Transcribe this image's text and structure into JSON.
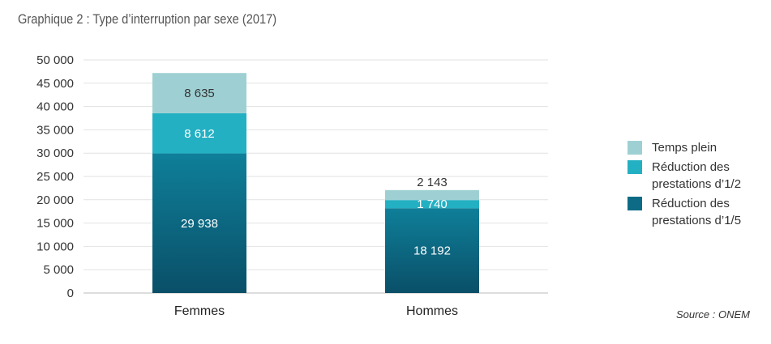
{
  "title": "Graphique 2 : Type d’interruption par sexe (2017)",
  "source": "Source : ONEM",
  "chart_data": {
    "type": "bar",
    "stacked": true,
    "categories": [
      "Femmes",
      "Hommes"
    ],
    "series": [
      {
        "name": "Réduction des prestations d’1/5",
        "values": [
          29938,
          18192
        ],
        "labels": [
          "29 938",
          "18 192"
        ],
        "color": "#0e6b86",
        "label_color": "#ffffff"
      },
      {
        "name": "Réduction des prestations d’1/2",
        "values": [
          8612,
          1740
        ],
        "labels": [
          "8 612",
          "1 740"
        ],
        "color": "#23b0c3",
        "label_color": "#ffffff"
      },
      {
        "name": "Temps plein",
        "values": [
          8635,
          2143
        ],
        "labels": [
          "8 635",
          "2 143"
        ],
        "color": "#9ed0d3",
        "label_color": "#333333"
      }
    ],
    "ylim": [
      0,
      50000
    ],
    "yticks": [
      0,
      5000,
      10000,
      15000,
      20000,
      25000,
      30000,
      35000,
      40000,
      45000,
      50000
    ],
    "ytick_labels": [
      "0",
      "5 000",
      "10 000",
      "15 000",
      "20 000",
      "25 000",
      "30 000",
      "35 000",
      "40 000",
      "45 000",
      "50 000"
    ],
    "grid": true,
    "legend_position": "right"
  },
  "legend": [
    {
      "label": "Temps plein",
      "color": "#9ed0d3"
    },
    {
      "label": "Réduction des\nprestations d’1/2",
      "color": "#23b0c3"
    },
    {
      "label": "Réduction des\nprestations d’1/5",
      "color": "#0e6b86"
    }
  ]
}
